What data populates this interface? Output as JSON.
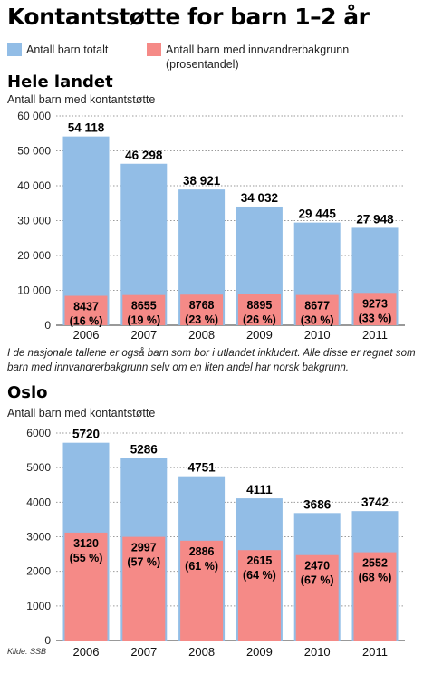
{
  "title": "Kontantstøtte for barn 1–2 år",
  "legend": {
    "total": "Antall barn totalt",
    "immigrant_line1": "Antall barn med innvandrerbakgrunn",
    "immigrant_line2": "(prosentandel)"
  },
  "colors": {
    "total": "#92bde6",
    "immigrant": "#f58a87",
    "grid": "#9a9a9a"
  },
  "note": "I de nasjonale tallene er også barn som bor i utlandet inkludert. Alle disse er regnet som barn med innvandrerbakgrunn selv om en liten andel har norsk bakgrunn.",
  "source": "Kilde: SSB",
  "chart_data": [
    {
      "type": "bar",
      "title": "Hele landet",
      "ylabel": "Antall barn med kontantstøtte",
      "categories": [
        "2006",
        "2007",
        "2008",
        "2009",
        "2010",
        "2011"
      ],
      "ylim": [
        0,
        60000
      ],
      "yticks": [
        0,
        10000,
        20000,
        30000,
        40000,
        50000,
        60000
      ],
      "ytick_labels": [
        "0",
        "10 000",
        "20 000",
        "30 000",
        "40 000",
        "50 000",
        "60 000"
      ],
      "grid": true,
      "series": [
        {
          "name": "Antall barn totalt",
          "values": [
            54118,
            46298,
            38921,
            34032,
            29445,
            27948
          ],
          "labels": [
            "54 118",
            "46 298",
            "38 921",
            "34 032",
            "29 445",
            "27 948"
          ]
        },
        {
          "name": "Antall barn med innvandrerbakgrunn",
          "values": [
            8437,
            8655,
            8768,
            8895,
            8677,
            9273
          ],
          "labels": [
            "8437",
            "8655",
            "8768",
            "8895",
            "8677",
            "9273"
          ],
          "percent_labels": [
            "(16 %)",
            "(19 %)",
            "(23 %)",
            "(26 %)",
            "(30 %)",
            "(33 %)"
          ]
        }
      ]
    },
    {
      "type": "bar",
      "title": "Oslo",
      "ylabel": "Antall barn med kontantstøtte",
      "categories": [
        "2006",
        "2007",
        "2008",
        "2009",
        "2010",
        "2011"
      ],
      "ylim": [
        0,
        6000
      ],
      "yticks": [
        0,
        1000,
        2000,
        3000,
        4000,
        5000,
        6000
      ],
      "ytick_labels": [
        "0",
        "1000",
        "2000",
        "3000",
        "4000",
        "5000",
        "6000"
      ],
      "grid": true,
      "series": [
        {
          "name": "Antall barn totalt",
          "values": [
            5720,
            5286,
            4751,
            4111,
            3686,
            3742
          ],
          "labels": [
            "5720",
            "5286",
            "4751",
            "4111",
            "3686",
            "3742"
          ]
        },
        {
          "name": "Antall barn med innvandrerbakgrunn",
          "values": [
            3120,
            2997,
            2886,
            2615,
            2470,
            2552
          ],
          "labels": [
            "3120",
            "2997",
            "2886",
            "2615",
            "2470",
            "2552"
          ],
          "percent_labels": [
            "(55 %)",
            "(57 %)",
            "(61 %)",
            "(64 %)",
            "(67 %)",
            "(68 %)"
          ]
        }
      ]
    }
  ]
}
